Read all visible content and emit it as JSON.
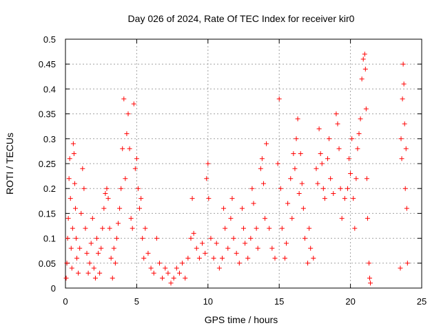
{
  "chart_data": {
    "type": "scatter",
    "title": "Day 026 of 2024, Rate Of TEC Index for receiver kir0",
    "xlabel": "GPS time / hours",
    "ylabel": "ROTI / TECUs",
    "xlim": [
      0,
      25
    ],
    "ylim": [
      0,
      0.5
    ],
    "x_ticks": [
      0,
      5,
      10,
      15,
      20,
      25
    ],
    "x_tick_labels": [
      "0",
      "5",
      "10",
      "15",
      "20",
      "25"
    ],
    "y_ticks": [
      0,
      0.05,
      0.1,
      0.15,
      0.2,
      0.25,
      0.3,
      0.35,
      0.4,
      0.45,
      0.5
    ],
    "y_tick_labels": [
      "0",
      "0.05",
      "0.1",
      "0.15",
      "0.2",
      "0.25",
      "0.3",
      "0.35",
      "0.4",
      "0.45",
      "0.5"
    ],
    "grid": true,
    "legend": "none",
    "marker": "plus",
    "colors": {
      "series": "#ff0000",
      "grid": "#a0a0a0",
      "axis": "#000000"
    },
    "series": [
      {
        "points": [
          [
            0.05,
            0.02
          ],
          [
            0.1,
            0.05
          ],
          [
            0.15,
            0.1
          ],
          [
            0.2,
            0.14
          ],
          [
            0.25,
            0.22
          ],
          [
            0.3,
            0.26
          ],
          [
            0.35,
            0.18
          ],
          [
            0.4,
            0.08
          ],
          [
            0.45,
            0.04
          ],
          [
            0.5,
            0.12
          ],
          [
            0.55,
            0.29
          ],
          [
            0.6,
            0.27
          ],
          [
            0.65,
            0.21
          ],
          [
            0.7,
            0.16
          ],
          [
            0.75,
            0.1
          ],
          [
            0.8,
            0.06
          ],
          [
            0.9,
            0.03
          ],
          [
            1.0,
            0.08
          ],
          [
            1.1,
            0.15
          ],
          [
            1.2,
            0.24
          ],
          [
            1.3,
            0.2
          ],
          [
            1.4,
            0.12
          ],
          [
            1.5,
            0.07
          ],
          [
            1.6,
            0.03
          ],
          [
            1.7,
            0.05
          ],
          [
            1.8,
            0.09
          ],
          [
            1.9,
            0.14
          ],
          [
            2.0,
            0.04
          ],
          [
            2.1,
            0.02
          ],
          [
            2.2,
            0.1
          ],
          [
            2.3,
            0.07
          ],
          [
            2.4,
            0.03
          ],
          [
            2.5,
            0.08
          ],
          [
            2.6,
            0.12
          ],
          [
            2.7,
            0.16
          ],
          [
            2.8,
            0.19
          ],
          [
            2.9,
            0.2
          ],
          [
            3.0,
            0.18
          ],
          [
            3.1,
            0.12
          ],
          [
            3.2,
            0.06
          ],
          [
            3.3,
            0.02
          ],
          [
            3.4,
            0.08
          ],
          [
            3.5,
            0.05
          ],
          [
            3.6,
            0.1
          ],
          [
            3.7,
            0.13
          ],
          [
            3.8,
            0.16
          ],
          [
            3.9,
            0.2
          ],
          [
            4.0,
            0.28
          ],
          [
            4.1,
            0.38
          ],
          [
            4.2,
            0.22
          ],
          [
            4.3,
            0.31
          ],
          [
            4.4,
            0.35
          ],
          [
            4.5,
            0.28
          ],
          [
            4.6,
            0.14
          ],
          [
            4.7,
            0.12
          ],
          [
            4.8,
            0.37
          ],
          [
            4.9,
            0.24
          ],
          [
            5.0,
            0.26
          ],
          [
            5.1,
            0.2
          ],
          [
            5.2,
            0.16
          ],
          [
            5.3,
            0.18
          ],
          [
            5.4,
            0.1
          ],
          [
            5.5,
            0.06
          ],
          [
            5.6,
            0.12
          ],
          [
            5.8,
            0.07
          ],
          [
            6.0,
            0.04
          ],
          [
            6.2,
            0.03
          ],
          [
            6.4,
            0.1
          ],
          [
            6.6,
            0.05
          ],
          [
            6.8,
            0.02
          ],
          [
            7.0,
            0.04
          ],
          [
            7.2,
            0.03
          ],
          [
            7.4,
            0.01
          ],
          [
            7.6,
            0.02
          ],
          [
            7.8,
            0.04
          ],
          [
            8.0,
            0.03
          ],
          [
            8.2,
            0.05
          ],
          [
            8.4,
            0.02
          ],
          [
            8.6,
            0.06
          ],
          [
            8.8,
            0.1
          ],
          [
            8.9,
            0.18
          ],
          [
            9.0,
            0.11
          ],
          [
            9.2,
            0.08
          ],
          [
            9.4,
            0.06
          ],
          [
            9.6,
            0.09
          ],
          [
            9.8,
            0.07
          ],
          [
            9.9,
            0.22
          ],
          [
            10.0,
            0.25
          ],
          [
            10.05,
            0.18
          ],
          [
            10.2,
            0.1
          ],
          [
            10.4,
            0.06
          ],
          [
            10.6,
            0.09
          ],
          [
            10.8,
            0.04
          ],
          [
            11.0,
            0.06
          ],
          [
            11.1,
            0.16
          ],
          [
            11.2,
            0.12
          ],
          [
            11.4,
            0.08
          ],
          [
            11.6,
            0.14
          ],
          [
            11.7,
            0.18
          ],
          [
            11.8,
            0.1
          ],
          [
            12.0,
            0.07
          ],
          [
            12.2,
            0.05
          ],
          [
            12.4,
            0.16
          ],
          [
            12.5,
            0.12
          ],
          [
            12.6,
            0.09
          ],
          [
            12.8,
            0.06
          ],
          [
            13.0,
            0.1
          ],
          [
            13.1,
            0.2
          ],
          [
            13.2,
            0.17
          ],
          [
            13.4,
            0.12
          ],
          [
            13.5,
            0.08
          ],
          [
            13.7,
            0.24
          ],
          [
            13.8,
            0.26
          ],
          [
            13.9,
            0.21
          ],
          [
            14.0,
            0.14
          ],
          [
            14.1,
            0.29
          ],
          [
            14.3,
            0.12
          ],
          [
            14.5,
            0.08
          ],
          [
            14.7,
            0.06
          ],
          [
            14.9,
            0.25
          ],
          [
            15.0,
            0.38
          ],
          [
            15.1,
            0.2
          ],
          [
            15.2,
            0.12
          ],
          [
            15.4,
            0.06
          ],
          [
            15.5,
            0.09
          ],
          [
            15.6,
            0.17
          ],
          [
            15.8,
            0.22
          ],
          [
            15.9,
            0.14
          ],
          [
            16.0,
            0.27
          ],
          [
            16.1,
            0.24
          ],
          [
            16.2,
            0.3
          ],
          [
            16.3,
            0.34
          ],
          [
            16.4,
            0.19
          ],
          [
            16.5,
            0.27
          ],
          [
            16.6,
            0.21
          ],
          [
            16.7,
            0.16
          ],
          [
            16.8,
            0.1
          ],
          [
            17.0,
            0.05
          ],
          [
            17.1,
            0.12
          ],
          [
            17.2,
            0.08
          ],
          [
            17.4,
            0.06
          ],
          [
            17.6,
            0.24
          ],
          [
            17.7,
            0.21
          ],
          [
            17.8,
            0.32
          ],
          [
            17.9,
            0.27
          ],
          [
            18.0,
            0.25
          ],
          [
            18.1,
            0.2
          ],
          [
            18.2,
            0.18
          ],
          [
            18.4,
            0.26
          ],
          [
            18.5,
            0.3
          ],
          [
            18.6,
            0.22
          ],
          [
            18.8,
            0.19
          ],
          [
            19.0,
            0.35
          ],
          [
            19.1,
            0.33
          ],
          [
            19.2,
            0.28
          ],
          [
            19.3,
            0.2
          ],
          [
            19.4,
            0.14
          ],
          [
            19.6,
            0.18
          ],
          [
            19.8,
            0.2
          ],
          [
            19.9,
            0.26
          ],
          [
            20.0,
            0.23
          ],
          [
            20.1,
            0.3
          ],
          [
            20.2,
            0.18
          ],
          [
            20.3,
            0.12
          ],
          [
            20.4,
            0.22
          ],
          [
            20.5,
            0.28
          ],
          [
            20.6,
            0.31
          ],
          [
            20.7,
            0.34
          ],
          [
            20.8,
            0.42
          ],
          [
            20.9,
            0.46
          ],
          [
            21.0,
            0.47
          ],
          [
            21.05,
            0.44
          ],
          [
            21.1,
            0.36
          ],
          [
            21.15,
            0.22
          ],
          [
            21.2,
            0.14
          ],
          [
            21.3,
            0.05
          ],
          [
            21.35,
            0.02
          ],
          [
            21.4,
            0.01
          ],
          [
            23.5,
            0.04
          ],
          [
            23.55,
            0.3
          ],
          [
            23.6,
            0.26
          ],
          [
            23.65,
            0.38
          ],
          [
            23.7,
            0.45
          ],
          [
            23.75,
            0.41
          ],
          [
            23.8,
            0.33
          ],
          [
            23.85,
            0.2
          ],
          [
            23.9,
            0.28
          ],
          [
            23.95,
            0.16
          ],
          [
            24.0,
            0.05
          ]
        ]
      }
    ]
  }
}
